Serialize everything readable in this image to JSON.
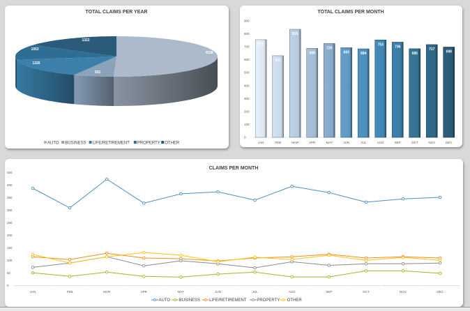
{
  "chart_data": [
    {
      "type": "pie",
      "title": "TOTAL CLAIMS PER YEAR",
      "categories": [
        "AUTO",
        "BUSINESS",
        "LIFE/RETIREMENT",
        "PROPERTY",
        "OTHER"
      ],
      "values": [
        4338,
        552,
        1335,
        1053,
        1322
      ],
      "colors": [
        "#acbacb",
        "#8aa3bb",
        "#3a80aa",
        "#2f6e94",
        "#2a5b7a"
      ],
      "data_labels": [
        "4338",
        "552",
        "1335",
        "1053",
        "1322"
      ],
      "legend": "bottom",
      "style": "3d"
    },
    {
      "type": "bar",
      "title": "TOTAL CLAIMS PER MONTH",
      "categories": [
        "JAN",
        "FEB",
        "MAR",
        "APR",
        "MAY",
        "JUN",
        "JUL",
        "AUG",
        "SEP",
        "OCT",
        "NOV",
        "DEC"
      ],
      "values": [
        755,
        631,
        835,
        688,
        725,
        693,
        684,
        753,
        736,
        685,
        717,
        698
      ],
      "data_labels": [
        "755",
        "631",
        "835",
        "688",
        "725",
        "693",
        "684",
        "753",
        "736",
        "685",
        "717",
        "698"
      ],
      "ylim": [
        0,
        900
      ],
      "yticks": [
        "0",
        "100",
        "200",
        "300",
        "400",
        "500",
        "600",
        "700",
        "800",
        "900"
      ],
      "colors": [
        "#dce6f0",
        "#c9d8e7",
        "#b5c9dd",
        "#9fbad3",
        "#88a9c8",
        "#5d98c1",
        "#4a8fbc",
        "#3f85b2",
        "#3a7ca6",
        "#33718f",
        "#2f6686",
        "#2a5a75"
      ],
      "grid": false
    },
    {
      "type": "line",
      "title": "CLAIMS PER MONTH",
      "categories": [
        "JAN",
        "FEB",
        "MAR",
        "APR",
        "MAY",
        "JUN",
        "JUL",
        "AUG",
        "SEP",
        "OCT",
        "NOV",
        "DEC"
      ],
      "ylim": [
        0,
        450
      ],
      "yticks": [
        "0",
        "50",
        "100",
        "150",
        "200",
        "250",
        "300",
        "350",
        "400",
        "450"
      ],
      "legend": "bottom",
      "grid": false,
      "series": [
        {
          "name": "AUTO",
          "color": "#4a90c2",
          "values": [
            387,
            309,
            423,
            328,
            365,
            373,
            340,
            395,
            370,
            332,
            345,
            351
          ]
        },
        {
          "name": "BUSINESS",
          "color": "#9bbb1f",
          "values": [
            51,
            37,
            54,
            37,
            34,
            46,
            54,
            35,
            35,
            59,
            59,
            49
          ]
        },
        {
          "name": "LIFE/RETIREMENT",
          "color": "#f28c1a",
          "values": [
            115,
            104,
            129,
            110,
            107,
            98,
            110,
            115,
            125,
            110,
            115,
            110
          ]
        },
        {
          "name": "PROPERTY",
          "color": "#8a8a8a",
          "values": [
            73,
            90,
            115,
            79,
            99,
            87,
            71,
            95,
            81,
            87,
            87,
            90
          ]
        },
        {
          "name": "OTHER",
          "color": "#ffc20e",
          "values": [
            124,
            90,
            115,
            132,
            121,
            95,
            113,
            104,
            121,
            101,
            112,
            101
          ]
        }
      ]
    }
  ]
}
